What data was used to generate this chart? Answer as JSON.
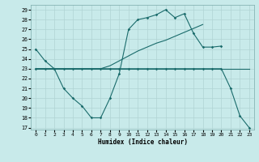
{
  "xlabel": "Humidex (Indice chaleur)",
  "bg_color": "#c8eaea",
  "grid_color": "#b0d4d4",
  "line_color": "#1a6b6b",
  "xlim": [
    -0.5,
    23.5
  ],
  "ylim": [
    16.8,
    29.5
  ],
  "xticks": [
    0,
    1,
    2,
    3,
    4,
    5,
    6,
    7,
    8,
    9,
    10,
    11,
    12,
    13,
    14,
    15,
    16,
    17,
    18,
    19,
    20,
    21,
    22,
    23
  ],
  "yticks": [
    17,
    18,
    19,
    20,
    21,
    22,
    23,
    24,
    25,
    26,
    27,
    28,
    29
  ],
  "s1_x": [
    0,
    1,
    2,
    3,
    4,
    5,
    6,
    7,
    8,
    9,
    10,
    11,
    12,
    13,
    14,
    15,
    16,
    17,
    18,
    19,
    20,
    21,
    22,
    23
  ],
  "s1_y": [
    25,
    23.8,
    23,
    23,
    23,
    23,
    23,
    23,
    23,
    23,
    23,
    23,
    23,
    23,
    23,
    23,
    23,
    23,
    23,
    23,
    23,
    21,
    18.2,
    17
  ],
  "s2_x": [
    0,
    1,
    2,
    3,
    4,
    5,
    6,
    7,
    8,
    9,
    10,
    11,
    12,
    13,
    14,
    15,
    16,
    17,
    18,
    19,
    20
  ],
  "s2_y": [
    23,
    23,
    23,
    21,
    20,
    19.2,
    18,
    18,
    20,
    22.5,
    27,
    28,
    28.2,
    28.5,
    29,
    28.2,
    28.6,
    26.6,
    25.2,
    25.2,
    25.3
  ],
  "s3_x": [
    0,
    1,
    2,
    3,
    4,
    5,
    6,
    7,
    8,
    9,
    10,
    11,
    12,
    13,
    14,
    15,
    16,
    17,
    18
  ],
  "s3_y": [
    23,
    23,
    23,
    23,
    23,
    23,
    23,
    23,
    23.3,
    23.8,
    24.3,
    24.8,
    25.2,
    25.6,
    25.9,
    26.3,
    26.7,
    27.1,
    27.5
  ],
  "s4_x": [
    0,
    1,
    2,
    3,
    4,
    5,
    6,
    7,
    8,
    9,
    10,
    11,
    12,
    13,
    14,
    15,
    16,
    17,
    18,
    19,
    20,
    21,
    22,
    23
  ],
  "s4_y": [
    23,
    23,
    23,
    23,
    23,
    23,
    23,
    23,
    23,
    23,
    23,
    23,
    23,
    23,
    23,
    23,
    23,
    23,
    23,
    23,
    23,
    23,
    23,
    23
  ]
}
